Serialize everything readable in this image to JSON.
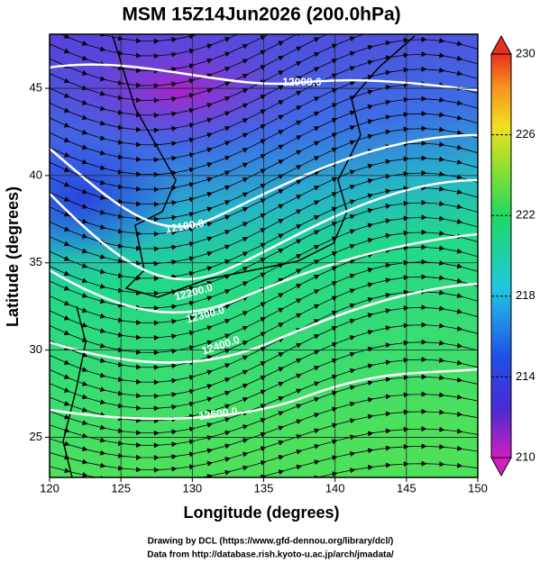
{
  "title": "MSM 15Z14Jun2026 (200.0hPa)",
  "x_axis": {
    "label": "Longitude (degrees)",
    "lim": [
      120,
      150
    ],
    "ticks": [
      120,
      125,
      130,
      135,
      140,
      145,
      150
    ]
  },
  "y_axis": {
    "label": "Latitude  (degrees)",
    "lim": [
      22.7,
      48.1
    ],
    "ticks": [
      25,
      30,
      35,
      40,
      45
    ]
  },
  "colorbar": {
    "lim": [
      210,
      230
    ],
    "ticks": [
      210,
      214,
      218,
      222,
      226,
      230
    ]
  },
  "contour_labels": [
    "12000.0",
    "12100.0",
    "12200.0",
    "12300.0",
    "12400.0",
    "12500.0"
  ],
  "credits": [
    "Drawing by DCL (https://www.gfd-dennou.org/library/dcl/)",
    "Data from http://database.rish.kyoto-u.ac.jp/arch/jmadata/"
  ]
}
